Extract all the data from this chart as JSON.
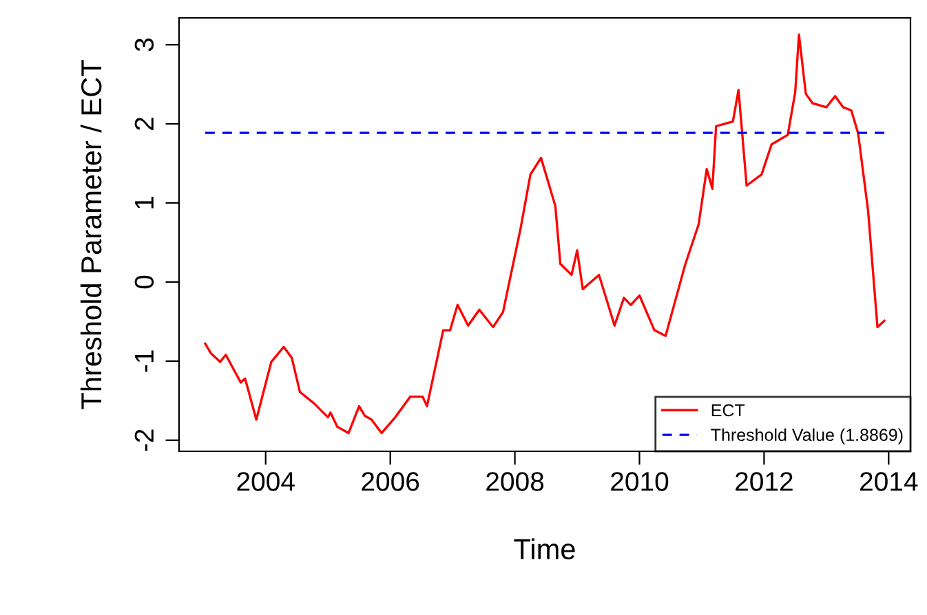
{
  "chart_data": {
    "type": "line",
    "xlabel": "Time",
    "ylabel": "Threshold Parameter / ECT",
    "xlim": [
      2002.61,
      2014.35
    ],
    "ylim": [
      -2.14,
      3.34
    ],
    "xticks": [
      2004,
      2006,
      2008,
      2010,
      2012,
      2014
    ],
    "yticks": [
      -2,
      -1,
      0,
      1,
      2,
      3
    ],
    "grid": false,
    "legend": "bottom right",
    "marker": "none",
    "series": [
      {
        "name": "ECT",
        "color": "#ff0000",
        "line_style": "solid",
        "x": [
          2003.03,
          2003.12,
          2003.27,
          2003.36,
          2003.6,
          2003.67,
          2003.85,
          2004.09,
          2004.29,
          2004.42,
          2004.55,
          2004.77,
          2005.0,
          2005.04,
          2005.15,
          2005.33,
          2005.5,
          2005.59,
          2005.7,
          2005.86,
          2006.08,
          2006.32,
          2006.52,
          2006.59,
          2006.85,
          2006.96,
          2007.08,
          2007.25,
          2007.43,
          2007.65,
          2007.81,
          2008.09,
          2008.25,
          2008.42,
          2008.65,
          2008.73,
          2008.91,
          2009.0,
          2009.09,
          2009.35,
          2009.6,
          2009.75,
          2009.86,
          2010.0,
          2010.24,
          2010.42,
          2010.73,
          2010.95,
          2011.08,
          2011.17,
          2011.23,
          2011.5,
          2011.59,
          2011.72,
          2011.96,
          2012.12,
          2012.38,
          2012.5,
          2012.56,
          2012.67,
          2012.78,
          2013.0,
          2013.14,
          2013.27,
          2013.4,
          2013.51,
          2013.67,
          2013.82,
          2013.93
        ],
        "values": [
          -0.78,
          -0.9,
          -1.01,
          -0.92,
          -1.27,
          -1.22,
          -1.74,
          -1.01,
          -0.82,
          -0.96,
          -1.39,
          -1.53,
          -1.71,
          -1.65,
          -1.83,
          -1.91,
          -1.57,
          -1.69,
          -1.74,
          -1.91,
          -1.71,
          -1.45,
          -1.45,
          -1.57,
          -0.61,
          -0.61,
          -0.29,
          -0.55,
          -0.35,
          -0.57,
          -0.38,
          0.67,
          1.36,
          1.57,
          0.96,
          0.23,
          0.09,
          0.4,
          -0.09,
          0.09,
          -0.55,
          -0.2,
          -0.29,
          -0.17,
          -0.61,
          -0.68,
          0.21,
          0.73,
          1.43,
          1.18,
          1.97,
          2.03,
          2.43,
          1.22,
          1.36,
          1.74,
          1.86,
          2.4,
          3.13,
          2.38,
          2.26,
          2.21,
          2.35,
          2.21,
          2.17,
          1.88,
          0.9,
          -0.57,
          -0.49
        ]
      },
      {
        "name": "Threshold Value (1.8869)",
        "color": "#0000ff",
        "line_style": "dashed",
        "x": [
          2003.03,
          2013.93
        ],
        "values": [
          1.8869,
          1.8869
        ]
      }
    ]
  }
}
